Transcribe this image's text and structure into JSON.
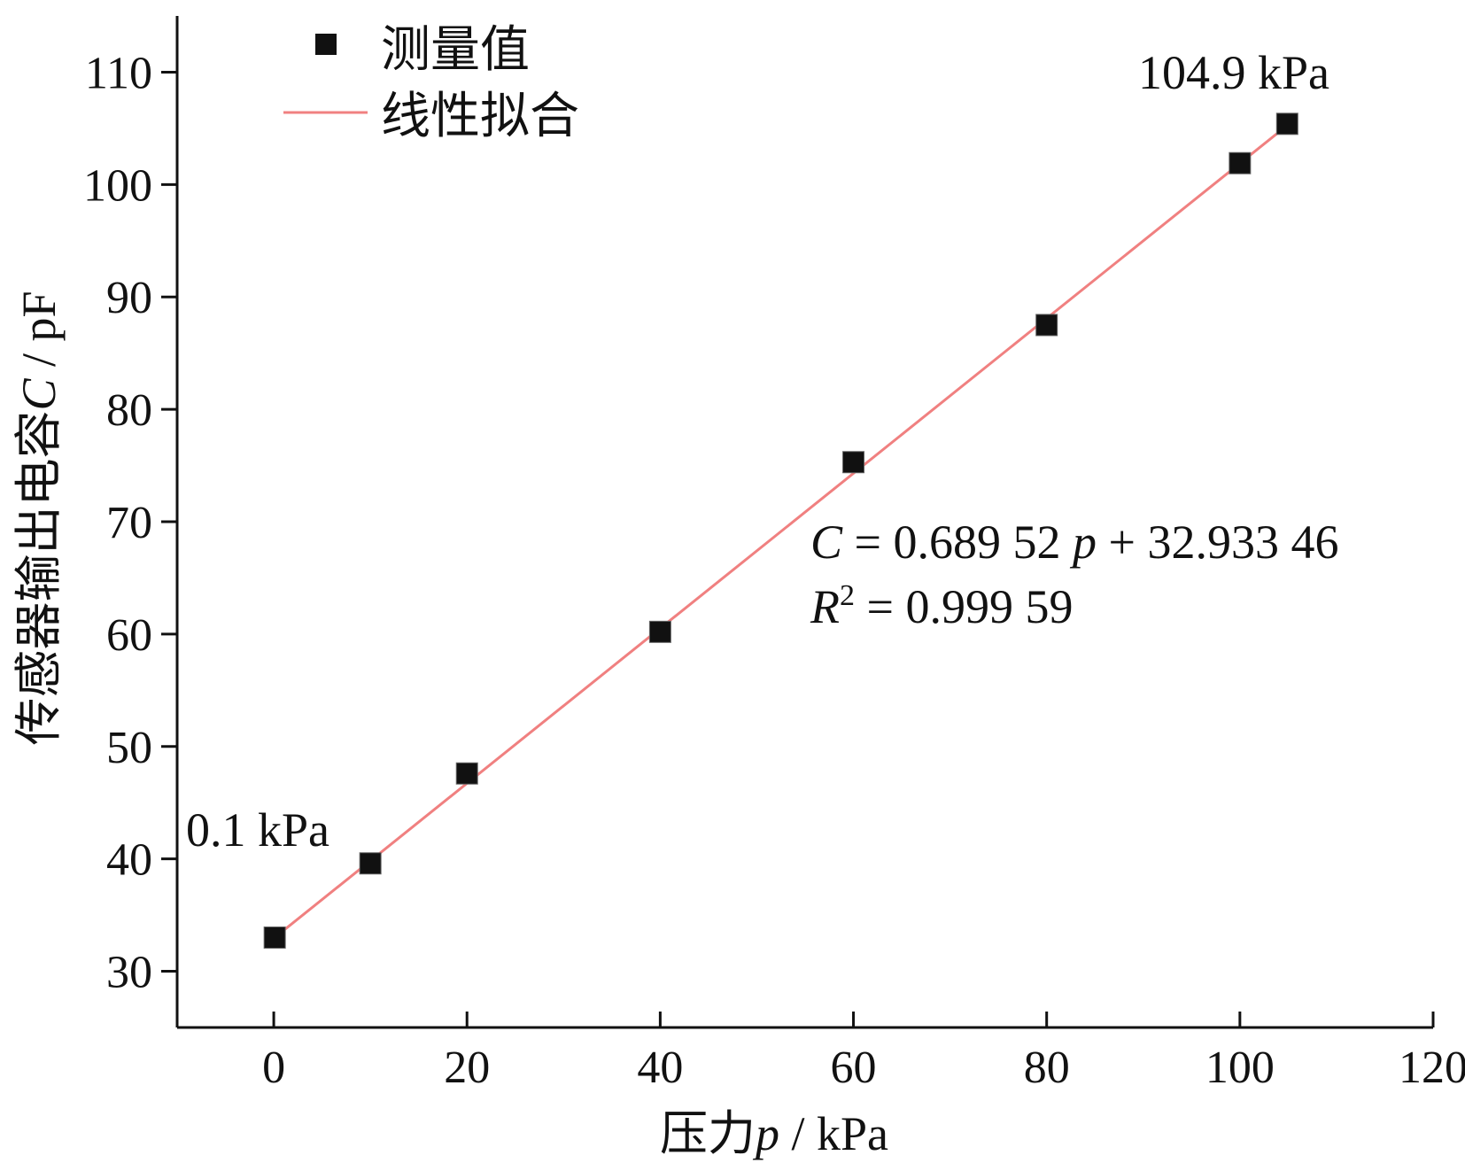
{
  "chart_data": {
    "type": "scatter",
    "xlabel": "压力p / kPa",
    "xlabel_prefix": "压力",
    "xlabel_var": "p",
    "xlabel_unit": " / kPa",
    "ylabel": "传感器输出电容C / pF",
    "ylabel_prefix": "传感器输出电容",
    "ylabel_var": "C",
    "ylabel_unit": " / pF",
    "xlim": [
      -10,
      120
    ],
    "ylim": [
      25,
      115
    ],
    "xticks": [
      0,
      20,
      40,
      60,
      80,
      100,
      120
    ],
    "yticks": [
      30,
      40,
      50,
      60,
      70,
      80,
      90,
      100,
      110
    ],
    "grid": false,
    "legend_position": "top-left",
    "series": [
      {
        "name": "测量值",
        "kind": "scatter",
        "color": "#111111",
        "marker": "square",
        "x": [
          0.1,
          10,
          20,
          40,
          60,
          80,
          100,
          104.9
        ],
        "y": [
          33.0,
          39.6,
          47.6,
          60.2,
          75.3,
          87.5,
          101.9,
          105.4
        ]
      },
      {
        "name": "线性拟合",
        "kind": "line",
        "color": "#f08080",
        "slope": 0.68952,
        "intercept": 32.93346,
        "x_range": [
          0,
          104.9
        ]
      }
    ],
    "annotations": [
      {
        "text": "0.1 kPa",
        "near": "first-point"
      },
      {
        "text": "104.9 kPa",
        "near": "last-point"
      }
    ],
    "equation": {
      "line1_var": "C",
      "line1_rest": " = 0.689 52 ",
      "line1_var2": "p",
      "line1_tail": " + 32.933 46",
      "line2_var": "R",
      "line2_sup": "2",
      "line2_rest": " = 0.999 59"
    }
  }
}
